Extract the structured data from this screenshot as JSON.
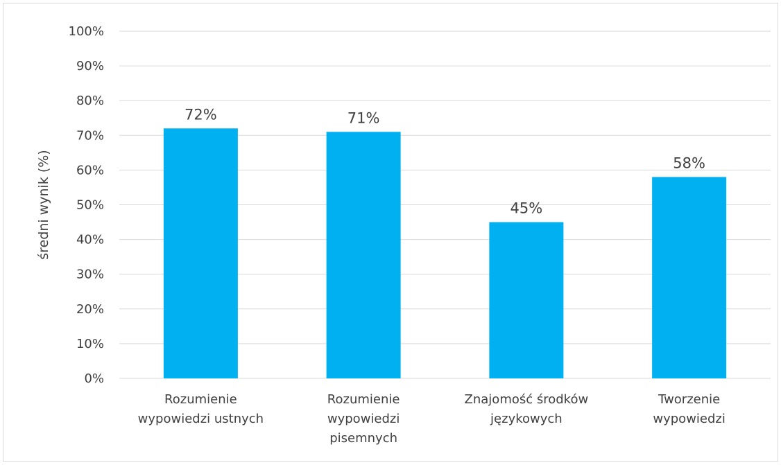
{
  "chart_data": {
    "type": "bar",
    "title": "",
    "xlabel": "",
    "ylabel": "średni wynik (%)",
    "ylim": [
      0,
      100
    ],
    "y_tick_step": 10,
    "y_tick_suffix": "%",
    "grid": true,
    "legend": "none",
    "bar_color": "#00B0F0",
    "categories": [
      [
        "Rozumienie",
        "wypowiedzi ustnych"
      ],
      [
        "Rozumienie",
        "wypowiedzi",
        "pisemnych"
      ],
      [
        "Znajomość środków",
        "językowych"
      ],
      [
        "Tworzenie",
        "wypowiedzi"
      ]
    ],
    "values": [
      72,
      71,
      45,
      58
    ],
    "data_labels": [
      "72%",
      "71%",
      "45%",
      "58%"
    ]
  }
}
